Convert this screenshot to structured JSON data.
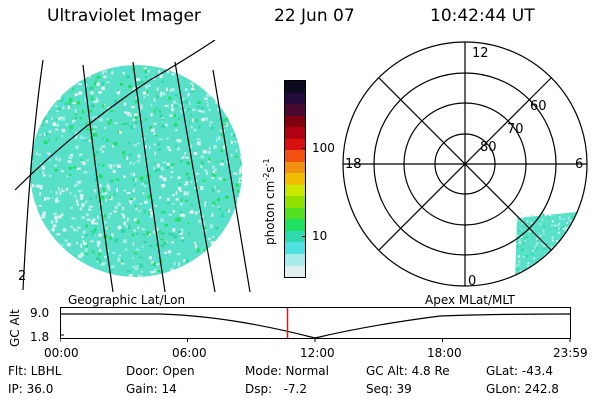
{
  "header": {
    "instrument": "Ultraviolet Imager",
    "date": "22 Jun 07",
    "time": "10:42:44 UT"
  },
  "colorbar": {
    "unit": "photon cm",
    "unit_sup1": "-2",
    "unit_mid": "s",
    "unit_sup2": "-1",
    "ticks": [
      "100",
      "10"
    ],
    "colors": [
      "#0a0a20",
      "#220a3a",
      "#4a0a30",
      "#800010",
      "#b00010",
      "#d81010",
      "#f05010",
      "#f09010",
      "#f0c000",
      "#c8e800",
      "#90e000",
      "#50e020",
      "#20e060",
      "#30d8b0",
      "#50e0e0",
      "#a8ecec",
      "#e0f0f0"
    ]
  },
  "left_panel": {
    "label": "Geographic Lat/Lon",
    "corner_glyph": "2"
  },
  "right_panel": {
    "label": "Apex MLat/MLT",
    "mlt_labels": {
      "top": "12",
      "left": "18",
      "right": "6",
      "bottom": "0"
    },
    "lat_labels": [
      "80",
      "70",
      "60"
    ]
  },
  "timeline": {
    "y_axis_label": "GC Alt",
    "y_ticks": [
      "9.0",
      "1.8"
    ],
    "x_ticks": [
      "00:00",
      "06:00",
      "12:00",
      "18:00",
      "23:59"
    ],
    "current_fraction": 0.446,
    "marker_color": "#d42020"
  },
  "footer": {
    "flt": "Flt: LBHL",
    "ip": "IP: 36.0",
    "door": "Door: Open",
    "gain": "Gain: 14",
    "mode": "Mode: Normal",
    "dsp": "Dsp:   -7.2",
    "gcalt": "GC Alt: 4.8 Re",
    "seq": "Seq: 39",
    "glat": "GLat: -43.4",
    "glon": "GLon: 242.8"
  }
}
